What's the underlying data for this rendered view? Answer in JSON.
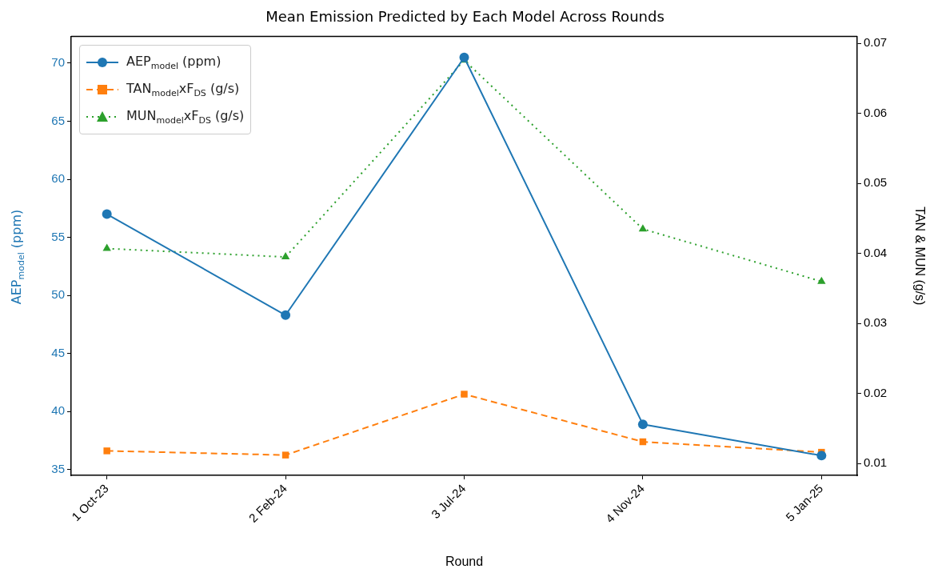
{
  "chart_data": {
    "type": "line",
    "title": "Mean Emission Predicted by Each Model Across Rounds",
    "xlabel": "Round",
    "ylabel": "AEP$_{model}$ (ppm)",
    "y2label": "TAN & MUN (g/s)",
    "categories": [
      "1 Oct-23",
      "2 Feb-24",
      "3 Jul-24",
      "4 Nov-24",
      "5 Jan-25"
    ],
    "series": [
      {
        "name": "AEP$_{model}$ (ppm)",
        "color": "#1f77b4",
        "marker": "circle",
        "line_style": "solid",
        "values": [
          57.0,
          48.3,
          70.5,
          38.9,
          36.2
        ]
      },
      {
        "name": "TAN$_{model}$xF$_{DS}$ (g/s)",
        "color": "#ff7f0e",
        "marker": "square",
        "line_style": "dashed",
        "axis": "y2",
        "values": [
          0.0118,
          0.0112,
          0.0199,
          0.0131,
          0.0116
        ]
      },
      {
        "name": "MUN$_{model}$xF$_{DS}$ (g/s)",
        "color": "#2ca02c",
        "marker": "triangle",
        "line_style": "dotted",
        "axis": "y2",
        "values": [
          0.0407,
          0.0395,
          0.0676,
          0.0435,
          0.036
        ]
      }
    ],
    "ylim": [
      34.5,
      72.3
    ],
    "yticks": [
      35,
      40,
      45,
      50,
      55,
      60,
      65,
      70
    ],
    "y2lim": [
      0.0083,
      0.071
    ],
    "y2ticks": [
      0.01,
      0.02,
      0.03,
      0.04,
      0.05,
      0.06,
      0.07
    ],
    "grid": false,
    "legend": "top left"
  }
}
